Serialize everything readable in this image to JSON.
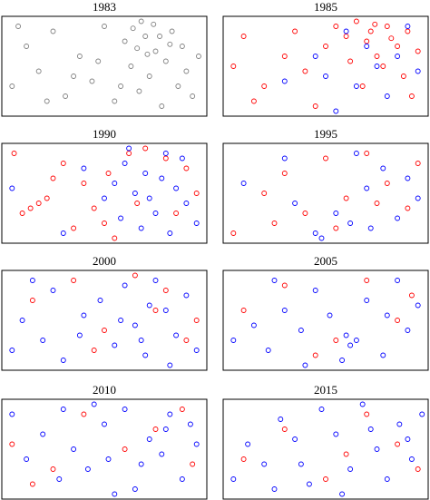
{
  "chart_data": [
    {
      "type": "scatter",
      "title": "1983",
      "xlim": [
        0,
        1
      ],
      "ylim": [
        0,
        1
      ],
      "series": [
        {
          "color": "#000000",
          "x": [
            0.05,
            0.12,
            0.18,
            0.25,
            0.31,
            0.38,
            0.44,
            0.5,
            0.55,
            0.6,
            0.63,
            0.67,
            0.7,
            0.72,
            0.75,
            0.78,
            0.8,
            0.83,
            0.86,
            0.88,
            0.9,
            0.93,
            0.96,
            0.08,
            0.22,
            0.35,
            0.47,
            0.58,
            0.68,
            0.77,
            0.64,
            0.71,
            0.82,
            0.74,
            0.66
          ],
          "y": [
            0.3,
            0.7,
            0.45,
            0.85,
            0.2,
            0.6,
            0.35,
            0.9,
            0.15,
            0.75,
            0.5,
            0.25,
            0.8,
            0.4,
            0.65,
            0.1,
            0.55,
            0.85,
            0.3,
            0.7,
            0.45,
            0.2,
            0.6,
            0.9,
            0.15,
            0.4,
            0.55,
            0.3,
            0.95,
            0.8,
            0.88,
            0.62,
            0.72,
            0.92,
            0.68
          ]
        }
      ]
    },
    {
      "type": "scatter",
      "title": "1985",
      "xlim": [
        0,
        1
      ],
      "ylim": [
        0,
        1
      ],
      "series": [
        {
          "color": "#ff0000",
          "x": [
            0.55,
            0.6,
            0.65,
            0.7,
            0.72,
            0.75,
            0.8,
            0.85,
            0.9,
            0.95,
            0.62,
            0.78,
            0.88,
            0.1,
            0.2,
            0.3,
            0.4,
            0.15,
            0.35,
            0.5,
            0.68,
            0.92,
            0.05,
            0.45,
            0.82,
            0.74
          ],
          "y": [
            0.9,
            0.8,
            0.95,
            0.75,
            0.85,
            0.6,
            0.9,
            0.7,
            0.85,
            0.65,
            0.55,
            0.5,
            0.4,
            0.8,
            0.3,
            0.6,
            0.45,
            0.15,
            0.85,
            0.7,
            0.3,
            0.2,
            0.5,
            0.1,
            0.78,
            0.92
          ]
        },
        {
          "color": "#0000ff",
          "x": [
            0.6,
            0.7,
            0.75,
            0.85,
            0.9,
            0.5,
            0.65,
            0.8,
            0.95,
            0.55,
            0.45,
            0.3
          ],
          "y": [
            0.85,
            0.7,
            0.5,
            0.6,
            0.9,
            0.4,
            0.3,
            0.2,
            0.45,
            0.05,
            0.6,
            0.35
          ]
        }
      ]
    },
    {
      "type": "scatter",
      "title": "1990",
      "xlim": [
        0,
        1
      ],
      "ylim": [
        0,
        1
      ],
      "series": [
        {
          "color": "#ff0000",
          "x": [
            0.1,
            0.14,
            0.18,
            0.22,
            0.3,
            0.4,
            0.5,
            0.55,
            0.62,
            0.7,
            0.8,
            0.9,
            0.95,
            0.45,
            0.35,
            0.52,
            0.25,
            0.66,
            0.85,
            0.06
          ],
          "y": [
            0.3,
            0.35,
            0.4,
            0.45,
            0.8,
            0.6,
            0.2,
            0.05,
            0.9,
            0.95,
            0.85,
            0.75,
            0.5,
            0.35,
            0.15,
            0.7,
            0.65,
            0.4,
            0.3,
            0.9
          ]
        },
        {
          "color": "#0000ff",
          "x": [
            0.55,
            0.6,
            0.65,
            0.7,
            0.75,
            0.8,
            0.85,
            0.9,
            0.95,
            0.58,
            0.68,
            0.78,
            0.88,
            0.5,
            0.4,
            0.3,
            0.05,
            0.62,
            0.72,
            0.82
          ],
          "y": [
            0.6,
            0.8,
            0.5,
            0.7,
            0.3,
            0.9,
            0.55,
            0.4,
            0.2,
            0.25,
            0.15,
            0.65,
            0.85,
            0.45,
            0.75,
            0.1,
            0.55,
            0.95,
            0.45,
            0.1
          ]
        }
      ]
    },
    {
      "type": "scatter",
      "title": "1995",
      "xlim": [
        0,
        1
      ],
      "ylim": [
        0,
        1
      ],
      "series": [
        {
          "color": "#ff0000",
          "x": [
            0.05,
            0.2,
            0.3,
            0.4,
            0.5,
            0.6,
            0.7,
            0.8,
            0.9,
            0.95,
            0.25,
            0.55,
            0.75
          ],
          "y": [
            0.1,
            0.5,
            0.7,
            0.3,
            0.85,
            0.45,
            0.9,
            0.6,
            0.35,
            0.8,
            0.2,
            0.15,
            0.4
          ]
        },
        {
          "color": "#0000ff",
          "x": [
            0.1,
            0.35,
            0.45,
            0.55,
            0.62,
            0.7,
            0.78,
            0.85,
            0.9,
            0.65,
            0.48,
            0.3,
            0.95,
            0.72
          ],
          "y": [
            0.6,
            0.4,
            0.1,
            0.3,
            0.2,
            0.55,
            0.75,
            0.25,
            0.65,
            0.9,
            0.05,
            0.85,
            0.45,
            0.15
          ]
        }
      ]
    },
    {
      "type": "scatter",
      "title": "2000",
      "xlim": [
        0,
        1
      ],
      "ylim": [
        0,
        1
      ],
      "series": [
        {
          "color": "#ff0000",
          "x": [
            0.15,
            0.35,
            0.5,
            0.65,
            0.75,
            0.8,
            0.9,
            0.95,
            0.45
          ],
          "y": [
            0.7,
            0.9,
            0.4,
            0.95,
            0.6,
            0.8,
            0.3,
            0.5,
            0.2
          ]
        },
        {
          "color": "#0000ff",
          "x": [
            0.05,
            0.1,
            0.2,
            0.25,
            0.3,
            0.4,
            0.48,
            0.55,
            0.6,
            0.65,
            0.7,
            0.75,
            0.8,
            0.85,
            0.9,
            0.95,
            0.58,
            0.72,
            0.82,
            0.38,
            0.15,
            0.68
          ],
          "y": [
            0.2,
            0.5,
            0.3,
            0.8,
            0.1,
            0.55,
            0.7,
            0.25,
            0.85,
            0.45,
            0.15,
            0.9,
            0.6,
            0.35,
            0.75,
            0.2,
            0.5,
            0.65,
            0.05,
            0.35,
            0.9,
            0.3
          ]
        }
      ]
    },
    {
      "type": "scatter",
      "title": "2005",
      "xlim": [
        0,
        1
      ],
      "ylim": [
        0,
        1
      ],
      "series": [
        {
          "color": "#ff0000",
          "x": [
            0.1,
            0.3,
            0.55,
            0.7,
            0.85,
            0.45,
            0.92
          ],
          "y": [
            0.6,
            0.85,
            0.3,
            0.9,
            0.5,
            0.15,
            0.75
          ]
        },
        {
          "color": "#0000ff",
          "x": [
            0.05,
            0.15,
            0.22,
            0.3,
            0.38,
            0.45,
            0.52,
            0.6,
            0.65,
            0.7,
            0.78,
            0.85,
            0.9,
            0.95,
            0.58,
            0.62,
            0.4,
            0.25,
            0.8
          ],
          "y": [
            0.3,
            0.45,
            0.2,
            0.6,
            0.4,
            0.8,
            0.55,
            0.35,
            0.3,
            0.7,
            0.15,
            0.9,
            0.4,
            0.65,
            0.1,
            0.25,
            0.05,
            0.9,
            0.55
          ]
        }
      ]
    },
    {
      "type": "scatter",
      "title": "2010",
      "xlim": [
        0,
        1
      ],
      "ylim": [
        0,
        1
      ],
      "series": [
        {
          "color": "#ff0000",
          "x": [
            0.05,
            0.25,
            0.4,
            0.6,
            0.75,
            0.88,
            0.93,
            0.15
          ],
          "y": [
            0.55,
            0.3,
            0.85,
            0.5,
            0.7,
            0.9,
            0.35,
            0.15
          ]
        },
        {
          "color": "#0000ff",
          "x": [
            0.05,
            0.12,
            0.2,
            0.28,
            0.35,
            0.42,
            0.5,
            0.55,
            0.6,
            0.68,
            0.72,
            0.78,
            0.82,
            0.88,
            0.95,
            0.45,
            0.65,
            0.3,
            0.8,
            0.92,
            0.52
          ],
          "y": [
            0.85,
            0.4,
            0.65,
            0.2,
            0.5,
            0.3,
            0.75,
            0.05,
            0.9,
            0.35,
            0.6,
            0.45,
            0.85,
            0.2,
            0.55,
            0.95,
            0.1,
            0.9,
            0.7,
            0.75,
            0.4
          ]
        }
      ]
    },
    {
      "type": "scatter",
      "title": "2015",
      "xlim": [
        0,
        1
      ],
      "ylim": [
        0,
        1
      ],
      "series": [
        {
          "color": "#ff0000",
          "x": [
            0.1,
            0.3,
            0.5,
            0.7,
            0.85,
            0.95,
            0.6
          ],
          "y": [
            0.4,
            0.7,
            0.2,
            0.85,
            0.55,
            0.3,
            0.45
          ]
        },
        {
          "color": "#0000ff",
          "x": [
            0.05,
            0.12,
            0.2,
            0.28,
            0.35,
            0.42,
            0.48,
            0.55,
            0.62,
            0.68,
            0.75,
            0.8,
            0.86,
            0.92,
            0.97,
            0.38,
            0.58,
            0.72,
            0.25,
            0.9
          ],
          "y": [
            0.2,
            0.55,
            0.35,
            0.8,
            0.6,
            0.15,
            0.9,
            0.65,
            0.3,
            0.95,
            0.5,
            0.2,
            0.75,
            0.4,
            0.85,
            0.35,
            0.05,
            0.7,
            0.1,
            0.6
          ]
        }
      ]
    }
  ]
}
